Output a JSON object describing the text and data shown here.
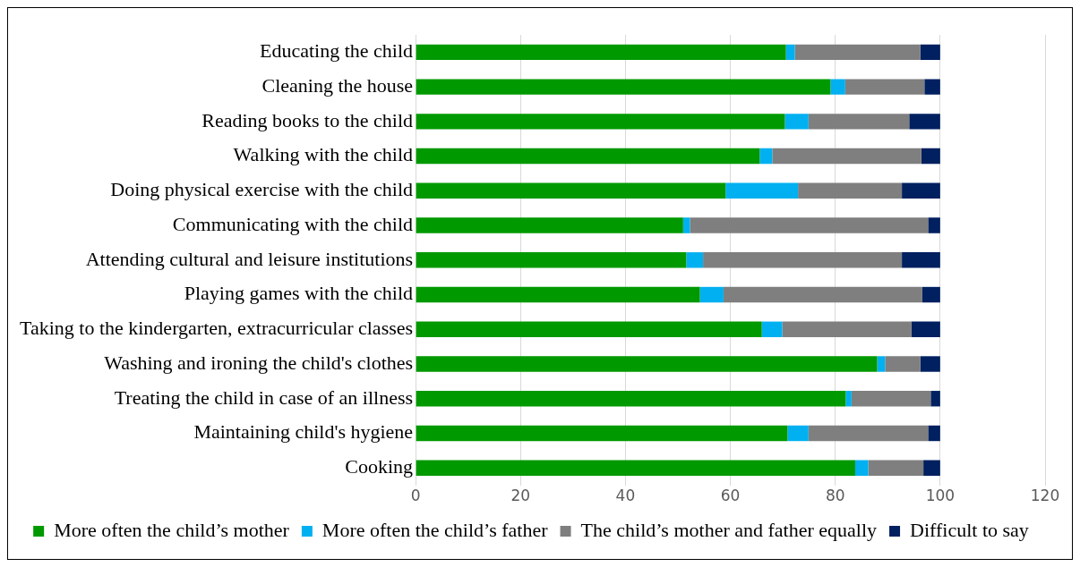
{
  "chart_data": {
    "type": "bar",
    "orientation": "horizontal",
    "stacked": true,
    "categories": [
      "Educating the child",
      "Cleaning the house",
      "Reading books to the child",
      "Walking with the child",
      "Doing physical exercise with the child",
      "Communicating with the child",
      "Attending cultural and leisure institutions",
      "Playing games with the child",
      "Taking to the kindergarten, extracurricular classes",
      "Washing and ironing the child's clothes",
      "Treating the child in case of an illness",
      "Maintaining child's hygiene",
      "Cooking"
    ],
    "series": [
      {
        "name": "More often the child’s mother",
        "color": "#009900",
        "values": [
          70.6,
          79.1,
          70.4,
          65.6,
          59.1,
          51.0,
          51.6,
          54.2,
          66.0,
          88.0,
          82.0,
          70.9,
          83.8
        ]
      },
      {
        "name": "More often the child’s father",
        "color": "#00b0f0",
        "values": [
          1.7,
          2.8,
          4.5,
          2.4,
          13.8,
          1.3,
          3.2,
          4.5,
          3.9,
          1.5,
          1.1,
          4.0,
          2.5
        ]
      },
      {
        "name": "The child’s mother and father equally",
        "color": "#7f7f7f",
        "values": [
          23.9,
          15.1,
          19.2,
          28.4,
          19.8,
          45.4,
          37.9,
          37.9,
          24.6,
          6.7,
          15.1,
          22.8,
          10.5
        ]
      },
      {
        "name": "Difficult to say",
        "color": "#002060",
        "values": [
          3.8,
          3.0,
          5.9,
          3.6,
          7.3,
          2.3,
          7.3,
          3.4,
          5.5,
          3.8,
          1.8,
          2.3,
          3.2
        ]
      }
    ],
    "xlim": [
      0,
      120
    ],
    "xticks": [
      0,
      20,
      40,
      60,
      80,
      100,
      120
    ],
    "grid": "x",
    "legend": "bottom"
  }
}
